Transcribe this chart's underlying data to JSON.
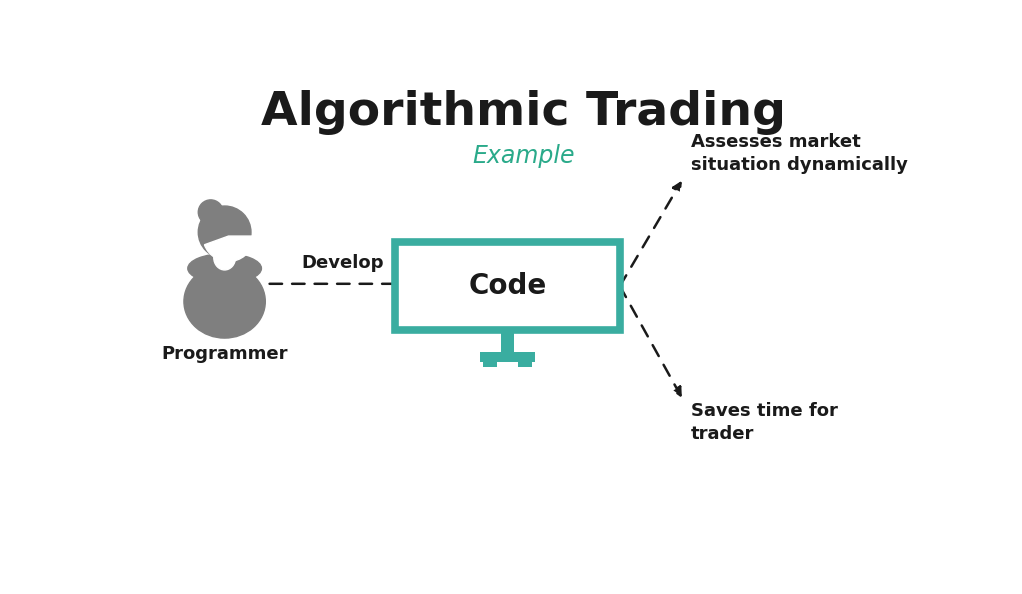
{
  "title": "Algorithmic Trading",
  "subtitle": "Example",
  "subtitle_color": "#2aaa8a",
  "title_color": "#1a1a1a",
  "background_color": "#ffffff",
  "programmer_label": "Programmer",
  "develop_label": "Develop",
  "code_label": "Code",
  "arrow1_label_top": "Assesses market\nsituation dynamically",
  "arrow2_label_bottom": "Saves time for\ntrader",
  "monitor_color": "#3aada0",
  "monitor_fill": "#ffffff",
  "person_color": "#7f7f7f",
  "arrow_color": "#1a1a1a",
  "text_color": "#1a1a1a",
  "figsize": [
    10.22,
    5.94
  ],
  "dpi": 100,
  "title_fontsize": 34,
  "subtitle_fontsize": 17,
  "label_fontsize": 13,
  "code_fontsize": 20,
  "develop_fontsize": 13
}
